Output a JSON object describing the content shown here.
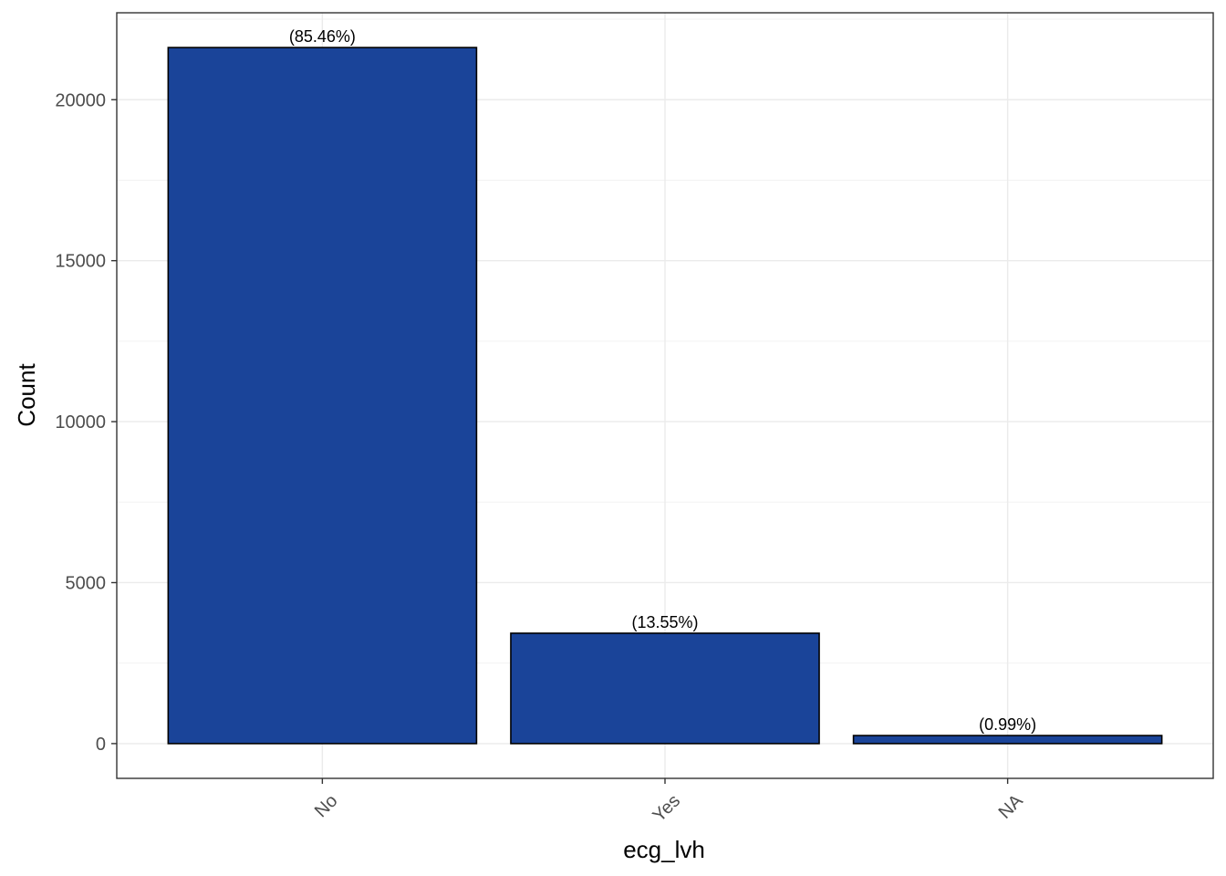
{
  "chart_data": {
    "type": "bar",
    "categories": [
      "No",
      "Yes",
      "NA"
    ],
    "values": [
      21620,
      3428,
      250
    ],
    "labels": [
      "(85.46%)",
      "(13.55%)",
      "(0.99%)"
    ],
    "xlabel": "ecg_lvh",
    "ylabel": "Count",
    "ylim": [
      -1080,
      22700
    ],
    "yticks": [
      0,
      5000,
      10000,
      15000,
      20000
    ],
    "grid": true,
    "bar_color": "#1A4499",
    "bar_edge_color": "#000000",
    "x_tick_rotation_deg": 45
  }
}
